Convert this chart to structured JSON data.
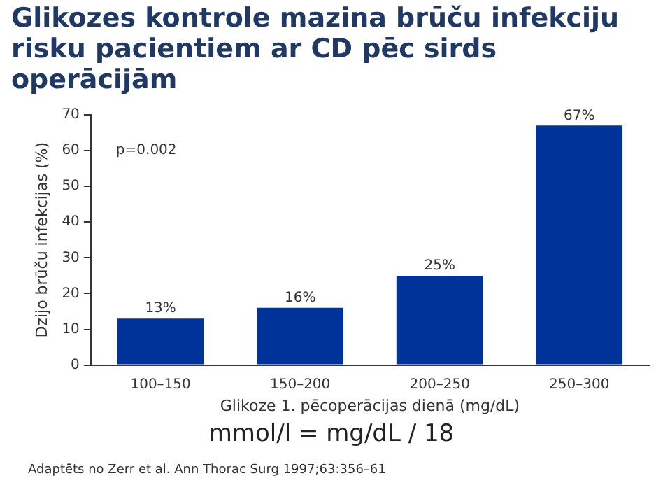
{
  "chart_data": {
    "type": "bar",
    "title": "Glikozes kontrole mazina brūču infekciju risku pacientiem ar CD pēc sirds operācijām",
    "xlabel": "Glikoze 1. pēcoperācijas dienā (mg/dL)",
    "ylabel": "Dzijo brūču infekcijas (%)",
    "categories": [
      "100–150",
      "150–200",
      "200–250",
      "250–300"
    ],
    "values": [
      13,
      16,
      25,
      67
    ],
    "value_labels": [
      "13%",
      "16%",
      "25%",
      "67%"
    ],
    "color": "#003399",
    "ylim": [
      0,
      70
    ],
    "yticks": [
      0,
      10,
      20,
      30,
      40,
      50,
      60,
      70
    ],
    "grid": false,
    "legend": false,
    "annotations": [
      "p=0.002",
      "mmol/l = mg/dL / 18",
      "Adaptēts no Zerr et al. Ann Thorac Surg 1997;63:356–61"
    ]
  }
}
